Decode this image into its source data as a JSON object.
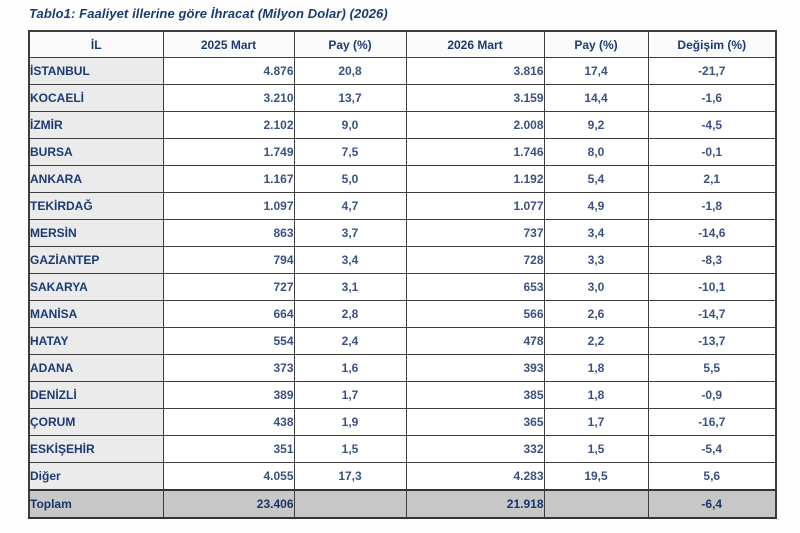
{
  "title": "Tablo1: Faaliyet illerine göre İhracat (Milyon Dolar) (2026)",
  "table": {
    "columns": [
      "İL",
      "2025 Mart",
      "Pay  (%)",
      "2026 Mart",
      "Pay  (%)",
      "Değişim (%)"
    ],
    "rows": [
      {
        "il": "İSTANBUL",
        "v25": "4.876",
        "p25": "20,8",
        "v26": "3.816",
        "p26": "17,4",
        "chg": "-21,7"
      },
      {
        "il": "KOCAELİ",
        "v25": "3.210",
        "p25": "13,7",
        "v26": "3.159",
        "p26": "14,4",
        "chg": "-1,6"
      },
      {
        "il": "İZMİR",
        "v25": "2.102",
        "p25": "9,0",
        "v26": "2.008",
        "p26": "9,2",
        "chg": "-4,5"
      },
      {
        "il": "BURSA",
        "v25": "1.749",
        "p25": "7,5",
        "v26": "1.746",
        "p26": "8,0",
        "chg": "-0,1"
      },
      {
        "il": "ANKARA",
        "v25": "1.167",
        "p25": "5,0",
        "v26": "1.192",
        "p26": "5,4",
        "chg": "2,1"
      },
      {
        "il": "TEKİRDAĞ",
        "v25": "1.097",
        "p25": "4,7",
        "v26": "1.077",
        "p26": "4,9",
        "chg": "-1,8"
      },
      {
        "il": "MERSİN",
        "v25": "863",
        "p25": "3,7",
        "v26": "737",
        "p26": "3,4",
        "chg": "-14,6"
      },
      {
        "il": "GAZİANTEP",
        "v25": "794",
        "p25": "3,4",
        "v26": "728",
        "p26": "3,3",
        "chg": "-8,3"
      },
      {
        "il": "SAKARYA",
        "v25": "727",
        "p25": "3,1",
        "v26": "653",
        "p26": "3,0",
        "chg": "-10,1"
      },
      {
        "il": "MANİSA",
        "v25": "664",
        "p25": "2,8",
        "v26": "566",
        "p26": "2,6",
        "chg": "-14,7"
      },
      {
        "il": "HATAY",
        "v25": "554",
        "p25": "2,4",
        "v26": "478",
        "p26": "2,2",
        "chg": "-13,7"
      },
      {
        "il": "ADANA",
        "v25": "373",
        "p25": "1,6",
        "v26": "393",
        "p26": "1,8",
        "chg": "5,5"
      },
      {
        "il": "DENİZLİ",
        "v25": "389",
        "p25": "1,7",
        "v26": "385",
        "p26": "1,8",
        "chg": "-0,9"
      },
      {
        "il": "ÇORUM",
        "v25": "438",
        "p25": "1,9",
        "v26": "365",
        "p26": "1,7",
        "chg": "-16,7"
      },
      {
        "il": "ESKİŞEHİR",
        "v25": "351",
        "p25": "1,5",
        "v26": "332",
        "p26": "1,5",
        "chg": "-5,4"
      },
      {
        "il": "Diğer",
        "v25": "4.055",
        "p25": "17,3",
        "v26": "4.283",
        "p26": "19,5",
        "chg": "5,6"
      }
    ],
    "total": {
      "il": "Toplam",
      "v25": "23.406",
      "p25": "",
      "v26": "21.918",
      "p26": "",
      "chg": "-6,4"
    }
  },
  "colors": {
    "heading_text": "#1b3a75",
    "number_text": "#3a5182",
    "province_cell_bg": "#ebebeb",
    "total_row_bg": "#c7c7c7",
    "border": "#3d3d3d"
  }
}
